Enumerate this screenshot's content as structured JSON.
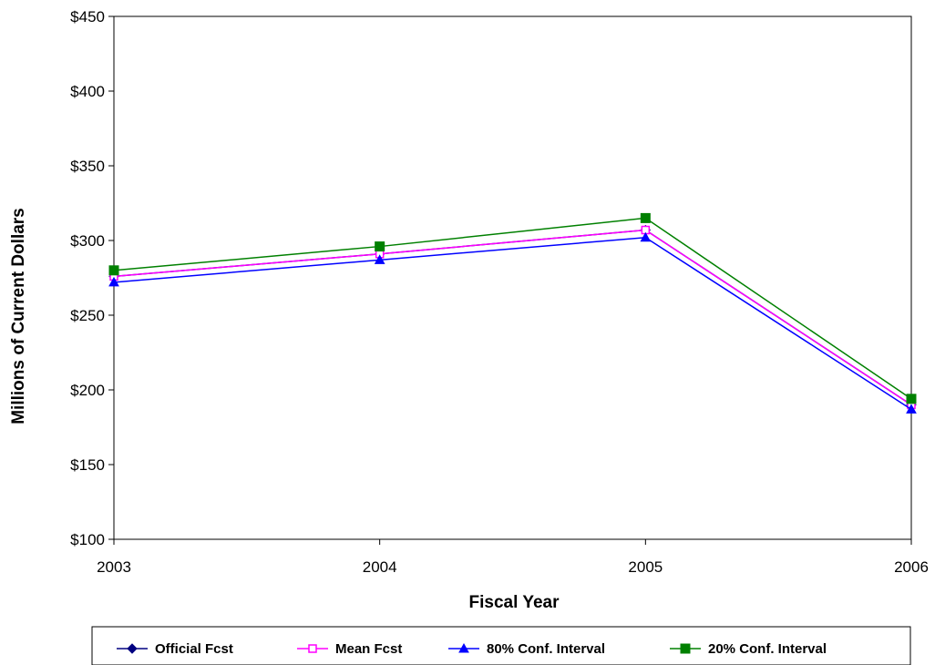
{
  "chart_data": {
    "type": "line",
    "title": "",
    "xlabel": "Fiscal Year",
    "ylabel": "Millions of Current Dollars",
    "x": [
      2003,
      2004,
      2005,
      2006
    ],
    "xticks": [
      "2003",
      "2004",
      "2005",
      "2006"
    ],
    "ylim": [
      100,
      450
    ],
    "yticks": [
      "$100",
      "$150",
      "$200",
      "$250",
      "$300",
      "$350",
      "$400",
      "$450"
    ],
    "grid": false,
    "legend_position": "bottom",
    "series": [
      {
        "name": "Official Fcst",
        "values": [
          276,
          291,
          307,
          190
        ],
        "color": "#000080",
        "marker": "diamond"
      },
      {
        "name": "Mean Fcst",
        "values": [
          276,
          291,
          307,
          190
        ],
        "color": "#ff00ff",
        "marker": "square-open"
      },
      {
        "name": "80% Conf. Interval",
        "values": [
          272,
          287,
          302,
          187
        ],
        "color": "#0000ff",
        "marker": "triangle"
      },
      {
        "name": "20% Conf. Interval",
        "values": [
          280,
          296,
          315,
          194
        ],
        "color": "#008000",
        "marker": "square"
      }
    ]
  }
}
